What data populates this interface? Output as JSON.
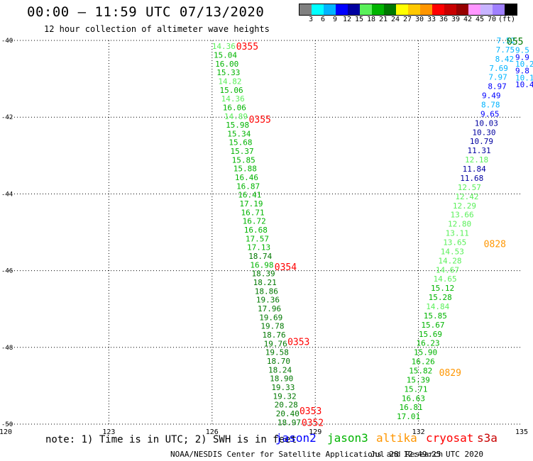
{
  "header": {
    "title": "00:00 – 11:59 UTC 07/13/2020",
    "subtitle": "12 hour collection of altimeter wave heights"
  },
  "colorbar": {
    "colors": [
      "#808080",
      "#00ffff",
      "#00b4ff",
      "#0000ff",
      "#0000a0",
      "#5af05a",
      "#00b400",
      "#007800",
      "#ffff00",
      "#ffc800",
      "#ff9600",
      "#ff0000",
      "#c80000",
      "#960000",
      "#ff96ff",
      "#c8b4ff",
      "#a080ff",
      "#000000"
    ],
    "labels": [
      "3",
      "6",
      "9",
      "12",
      "15",
      "18",
      "21",
      "24",
      "27",
      "30",
      "33",
      "36",
      "39",
      "42",
      "45",
      "70",
      "(ft)"
    ]
  },
  "chart_data": {
    "type": "scatter",
    "xlim": [
      120,
      135
    ],
    "ylim": [
      -50,
      -40
    ],
    "x_ticks": [
      "120",
      "123",
      "126",
      "129",
      "132",
      "135"
    ],
    "y_ticks": [
      "-40",
      "-42",
      "-44",
      "-46",
      "-48",
      "-50"
    ],
    "grid": true,
    "track1_heights": [
      "14.36",
      "15.04",
      "16.00",
      "15.33",
      "14.82",
      "15.06",
      "14.36",
      "16.06",
      "14.89",
      "15.98",
      "15.34",
      "15.68",
      "15.37",
      "15.85",
      "15.88",
      "16.46",
      "16.87",
      "16.41",
      "17.19",
      "16.71",
      "16.72",
      "16.68",
      "17.57",
      "17.13",
      "18.74",
      "16.98",
      "18.39",
      "18.21",
      "18.86",
      "19.36",
      "17.96",
      "19.69",
      "19.78",
      "18.76",
      "19.76",
      "19.58",
      "18.70",
      "18.24",
      "18.90",
      "19.33",
      "19.32",
      "20.28",
      "20.40",
      "18.97"
    ],
    "track1_colors": [
      "#5af05a",
      "#00b400",
      "#00b400",
      "#00b400",
      "#5af05a",
      "#00b400",
      "#5af05a",
      "#00b400",
      "#5af05a",
      "#00b400",
      "#00b400",
      "#00b400",
      "#00b400",
      "#00b400",
      "#00b400",
      "#00b400",
      "#00b400",
      "#00b400",
      "#00b400",
      "#00b400",
      "#00b400",
      "#00b400",
      "#00b400",
      "#00b400",
      "#007800",
      "#00b400",
      "#007800",
      "#007800",
      "#007800",
      "#007800",
      "#007800",
      "#007800",
      "#007800",
      "#007800",
      "#007800",
      "#007800",
      "#007800",
      "#007800",
      "#007800",
      "#007800",
      "#007800",
      "#007800",
      "#007800",
      "#007800"
    ],
    "track1_lon_start": 126.0,
    "track1_lon_end": 127.9,
    "track1_lat_start": -40.15,
    "track1_lat_end": -49.95,
    "track1_times": [
      {
        "label": "0355",
        "lat": -40.15
      },
      {
        "label": "0355",
        "lat": -42.05
      },
      {
        "label": "0354",
        "lat": -45.9
      },
      {
        "label": "0353",
        "lat": -47.85
      },
      {
        "label": "0353",
        "lat": -49.65
      },
      {
        "label": "0352",
        "lat": -49.95
      }
    ],
    "track2_heights": [
      "7.52",
      "7.75",
      "8.42",
      "7.69",
      "7.97",
      "8.97",
      "9.49",
      "8.78",
      "9.65",
      "10.03",
      "10.30",
      "10.79",
      "11.31",
      "12.18",
      "11.84",
      "11.68",
      "12.57",
      "12.42",
      "12.29",
      "13.66",
      "12.80",
      "13.11",
      "13.65",
      "14.53",
      "14.28",
      "14.67",
      "14.65",
      "15.12",
      "15.28",
      "14.84",
      "15.85",
      "15.67",
      "15.69",
      "16.23",
      "15.90",
      "16.26",
      "15.82",
      "15.39",
      "15.71",
      "16.63",
      "16.81",
      "17.01"
    ],
    "track2_colors": [
      "#00b4ff",
      "#00b4ff",
      "#00b4ff",
      "#00b4ff",
      "#00b4ff",
      "#0000ff",
      "#0000ff",
      "#00b4ff",
      "#0000ff",
      "#0000a0",
      "#0000a0",
      "#0000a0",
      "#0000a0",
      "#5af05a",
      "#0000a0",
      "#0000a0",
      "#5af05a",
      "#5af05a",
      "#5af05a",
      "#5af05a",
      "#5af05a",
      "#5af05a",
      "#5af05a",
      "#5af05a",
      "#5af05a",
      "#5af05a",
      "#5af05a",
      "#00b400",
      "#00b400",
      "#5af05a",
      "#00b400",
      "#00b400",
      "#00b400",
      "#00b400",
      "#00b400",
      "#00b400",
      "#00b400",
      "#00b400",
      "#00b400",
      "#00b400",
      "#00b400",
      "#00b400"
    ],
    "track2_lon_start": 134.6,
    "track2_lon_end": 131.7,
    "track2_lat_start": -40.0,
    "track2_lat_end": -49.8,
    "track2_times": [
      {
        "label": "0828",
        "lat": -45.3,
        "lon": 133.9
      },
      {
        "label": "0829",
        "lat": -48.65,
        "lon": 132.6
      }
    ],
    "track3_heights": [
      "9.5",
      "9.9",
      "10.2",
      "9.8",
      "10.1",
      "10.4"
    ],
    "track3_times": [
      {
        "label": "055",
        "lat": -40.0
      }
    ],
    "time_color_t1": "#ff0000",
    "time_color_t2": "#ff9600",
    "time_color_t3": "#007800",
    "satellites": [
      {
        "name": "jason2",
        "color": "#0000ff"
      },
      {
        "name": "jason3",
        "color": "#00b400"
      },
      {
        "name": "altika",
        "color": "#ff9600"
      },
      {
        "name": "cryosat",
        "color": "#ff0000"
      },
      {
        "name": "s3a",
        "color": "#c80000"
      }
    ]
  },
  "footer": {
    "note": "note: 1) Time is in UTC; 2) SWH is in feet",
    "credit": "NOAA/NESDIS Center for Satellite Applications and Research",
    "timestamp": "Jul 28 12:49:25 UTC 2020"
  }
}
